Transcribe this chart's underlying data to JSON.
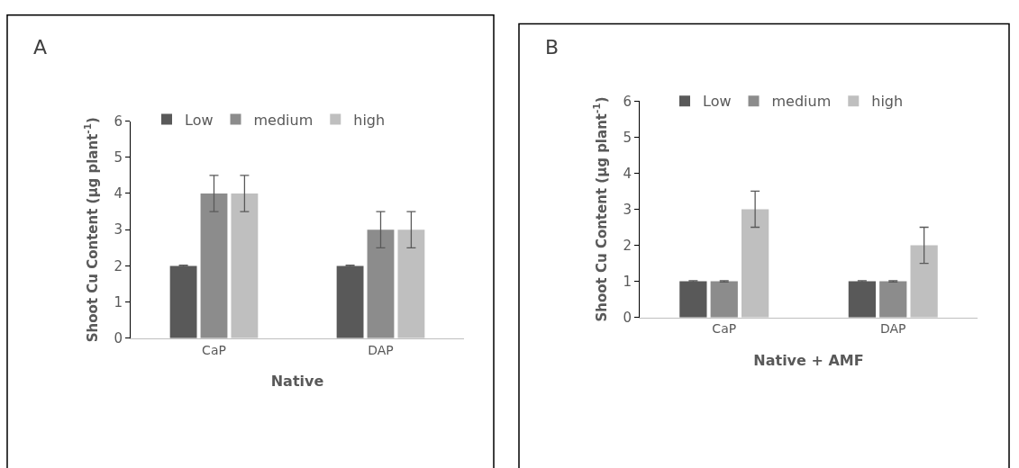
{
  "chart_data": [
    {
      "type": "bar",
      "title": "A",
      "xlabel": "Native",
      "ylabel": "Shoot Cu Content (µg plant$^{-1}$)",
      "categories": [
        "CaP",
        "DAP"
      ],
      "ylim": [
        0,
        6
      ],
      "yticks": [
        0,
        1,
        2,
        3,
        4,
        5,
        6
      ],
      "legend": "top",
      "series": [
        {
          "name": "Low",
          "color": "#595959",
          "values": [
            2,
            2
          ],
          "errors": [
            0.02,
            0.02
          ]
        },
        {
          "name": "medium",
          "color": "#8c8c8c",
          "values": [
            4,
            3
          ],
          "errors": [
            0.5,
            0.5
          ]
        },
        {
          "name": "high",
          "color": "#bfbfbf",
          "values": [
            4,
            3
          ],
          "errors": [
            0.5,
            0.5
          ]
        }
      ]
    },
    {
      "type": "bar",
      "title": "B",
      "xlabel": "Native + AMF",
      "ylabel": "Shoot Cu Content (µg plant$^{-1}$)",
      "categories": [
        "CaP",
        "DAP"
      ],
      "ylim": [
        0,
        6
      ],
      "yticks": [
        0,
        1,
        2,
        3,
        4,
        5,
        6
      ],
      "legend": "top",
      "series": [
        {
          "name": "Low",
          "color": "#595959",
          "values": [
            1,
            1
          ],
          "errors": [
            0.02,
            0.02
          ]
        },
        {
          "name": "medium",
          "color": "#8c8c8c",
          "values": [
            1,
            1
          ],
          "errors": [
            0.02,
            0.02
          ]
        },
        {
          "name": "high",
          "color": "#bfbfbf",
          "values": [
            3,
            2
          ],
          "errors": [
            0.5,
            0.5
          ]
        }
      ]
    }
  ]
}
